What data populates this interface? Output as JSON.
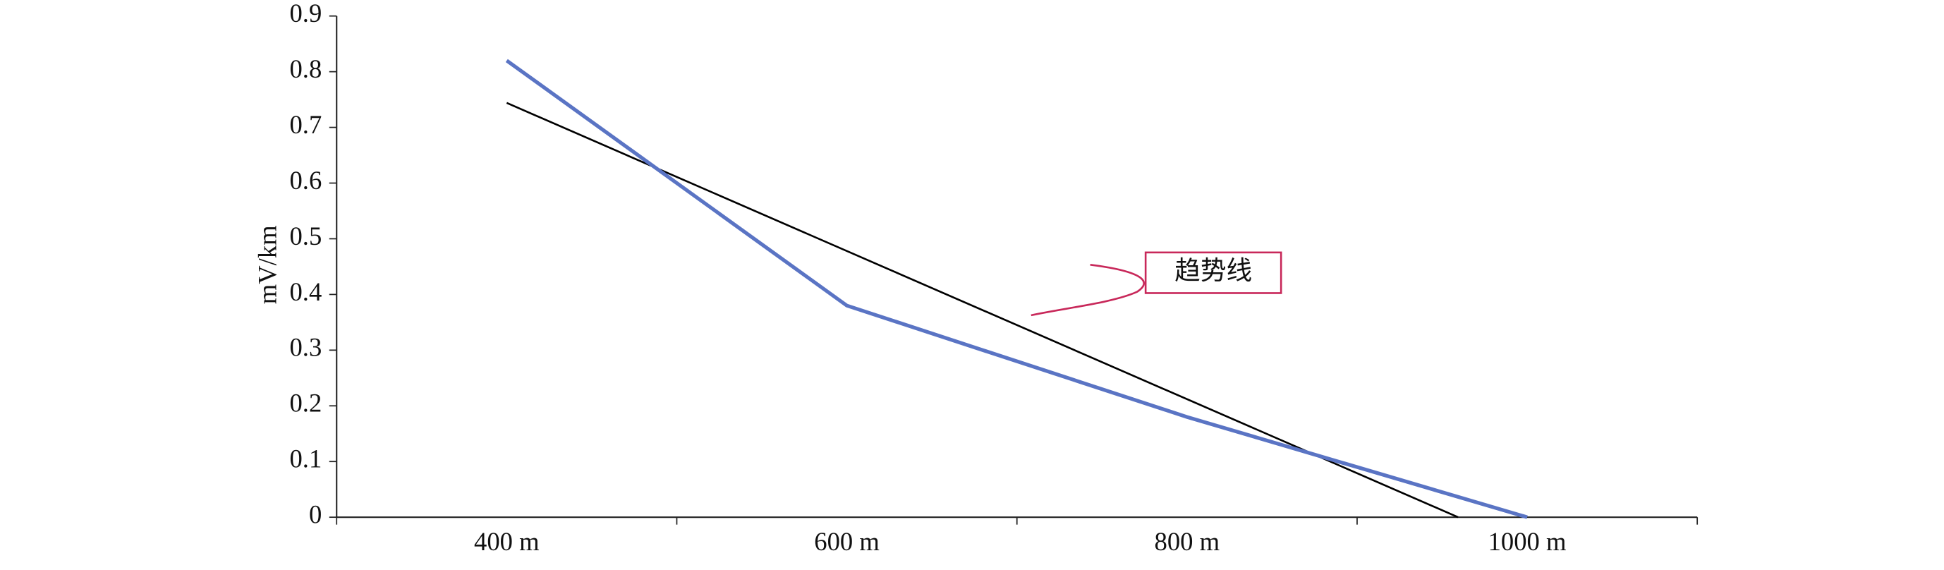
{
  "chart_data": {
    "type": "line",
    "categories": [
      "400 m",
      "600 m",
      "800 m",
      "1000 m"
    ],
    "series": [
      {
        "color": "#5a74c4",
        "values": [
          0.82,
          0.38,
          0.18,
          0
        ]
      }
    ],
    "ylabel": "mV/km",
    "ylim": [
      0,
      0.9
    ],
    "yticks": [
      0,
      0.1,
      0.2,
      0.3,
      0.4,
      0.5,
      0.6,
      0.7,
      0.8,
      0.9
    ],
    "trendline": true,
    "annotation": "趋势线",
    "annotation_color": "#c8285a"
  }
}
